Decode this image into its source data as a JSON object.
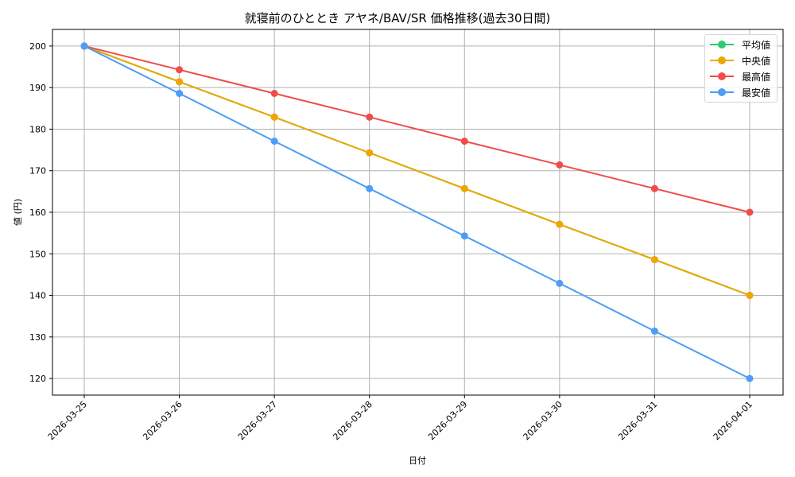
{
  "chart_data": {
    "type": "line",
    "title": "就寝前のひととき アヤネ/BAV/SR 価格推移(過去30日間)",
    "xlabel": "日付",
    "ylabel": "値 (円)",
    "categories": [
      "2026-03-25",
      "2026-03-26",
      "2026-03-27",
      "2026-03-28",
      "2026-03-29",
      "2026-03-30",
      "2026-03-31",
      "2026-04-01"
    ],
    "ylim": [
      116,
      204
    ],
    "yticks": [
      120,
      130,
      140,
      150,
      160,
      170,
      180,
      190,
      200
    ],
    "grid": true,
    "legend_position": "upper right",
    "series": [
      {
        "name": "平均値",
        "color": "#2ecc71",
        "values": [
          200,
          191.4,
          182.9,
          174.3,
          165.7,
          157.1,
          148.6,
          140
        ]
      },
      {
        "name": "中央値",
        "color": "#f0a500",
        "values": [
          200,
          191.4,
          182.9,
          174.3,
          165.7,
          157.1,
          148.6,
          140
        ]
      },
      {
        "name": "最高値",
        "color": "#f04c4c",
        "values": [
          200,
          194.3,
          188.6,
          182.9,
          177.1,
          171.4,
          165.7,
          160
        ]
      },
      {
        "name": "最安値",
        "color": "#4c9df7",
        "values": [
          200,
          188.6,
          177.1,
          165.7,
          154.3,
          142.9,
          131.4,
          120
        ]
      }
    ]
  },
  "legend": {
    "items": [
      {
        "label": "平均値",
        "color": "#2ecc71"
      },
      {
        "label": "中央値",
        "color": "#f0a500"
      },
      {
        "label": "最高値",
        "color": "#f04c4c"
      },
      {
        "label": "最安値",
        "color": "#4c9df7"
      }
    ]
  }
}
